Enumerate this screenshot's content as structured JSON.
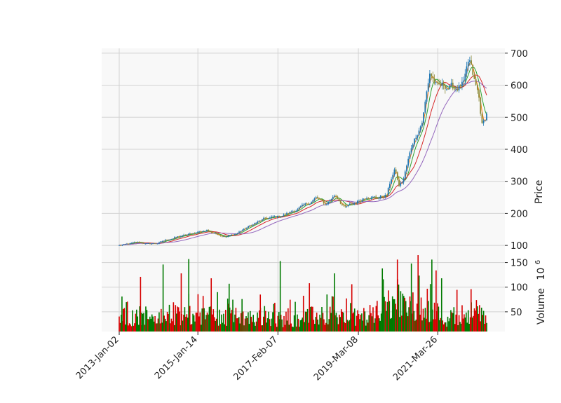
{
  "chart_data": [
    {
      "type": "candlestick",
      "panel": "price",
      "ylabel": "Price",
      "ylim": [
        85,
        715
      ],
      "yticks": [
        100,
        200,
        300,
        400,
        500,
        600,
        700
      ],
      "x_tick_labels": [
        "2013-Jan-02",
        "2015-Jan-14",
        "2017-Feb-07",
        "2019-Mar-08",
        "2021-Mar-26"
      ],
      "x_range": [
        "2013-01-02",
        "2022-06-30"
      ],
      "grid": true,
      "up_color": "#1f77b4",
      "down_color": "#8b8b3a",
      "close_approx": [
        [
          "2013-01-02",
          100
        ],
        [
          "2013-04-01",
          104
        ],
        [
          "2013-07-01",
          110
        ],
        [
          "2013-10-01",
          104
        ],
        [
          "2014-01-02",
          107
        ],
        [
          "2014-04-01",
          118
        ],
        [
          "2014-07-01",
          126
        ],
        [
          "2014-10-01",
          132
        ],
        [
          "2015-01-14",
          142
        ],
        [
          "2015-04-01",
          147
        ],
        [
          "2015-07-01",
          139
        ],
        [
          "2015-10-01",
          126
        ],
        [
          "2016-01-04",
          136
        ],
        [
          "2016-04-01",
          152
        ],
        [
          "2016-07-01",
          168
        ],
        [
          "2016-10-01",
          182
        ],
        [
          "2017-02-07",
          190
        ],
        [
          "2017-05-01",
          198
        ],
        [
          "2017-08-01",
          212
        ],
        [
          "2017-11-01",
          226
        ],
        [
          "2018-02-01",
          248
        ],
        [
          "2018-05-01",
          228
        ],
        [
          "2018-08-01",
          258
        ],
        [
          "2018-11-01",
          218
        ],
        [
          "2019-03-08",
          238
        ],
        [
          "2019-06-01",
          255
        ],
        [
          "2019-09-01",
          248
        ],
        [
          "2019-12-01",
          258
        ],
        [
          "2020-01-15",
          312
        ],
        [
          "2020-02-20",
          338
        ],
        [
          "2020-03-20",
          285
        ],
        [
          "2020-05-01",
          300
        ],
        [
          "2020-08-01",
          420
        ],
        [
          "2020-11-01",
          490
        ],
        [
          "2021-01-10",
          640
        ],
        [
          "2021-03-26",
          590
        ],
        [
          "2021-06-01",
          598
        ],
        [
          "2021-09-01",
          590
        ],
        [
          "2021-12-01",
          605
        ],
        [
          "2022-01-15",
          675
        ],
        [
          "2022-03-01",
          615
        ],
        [
          "2022-04-15",
          565
        ],
        [
          "2022-05-20",
          470
        ],
        [
          "2022-06-30",
          510
        ]
      ],
      "moving_averages": [
        {
          "color": "#ff7f0e"
        },
        {
          "color": "#2ca02c"
        },
        {
          "color": "#d62728"
        },
        {
          "color": "#9467bd"
        }
      ]
    },
    {
      "type": "bar",
      "panel": "volume",
      "ylabel": "Volume",
      "ylabel_exponent": "10",
      "ylabel_exponent_power": "6",
      "ylim": [
        10,
        175
      ],
      "yticks": [
        50,
        100,
        150
      ],
      "up_color": "#007a00",
      "down_color": "#d60000",
      "volume_profile_approx": [
        [
          "2013-01-02",
          45
        ],
        [
          "2014-01-02",
          42
        ],
        [
          "2015-01-14",
          48
        ],
        [
          "2016-01-04",
          44
        ],
        [
          "2017-02-07",
          38
        ],
        [
          "2018-02-01",
          46
        ],
        [
          "2019-03-08",
          42
        ],
        [
          "2020-03-20",
          70
        ],
        [
          "2021-01-10",
          65
        ],
        [
          "2021-06-01",
          40
        ],
        [
          "2022-01-15",
          55
        ],
        [
          "2022-06-30",
          45
        ]
      ],
      "volume_peaks_approx": [
        [
          "2013-01-28",
          81
        ],
        [
          "2013-07-22",
          121
        ],
        [
          "2014-02-20",
          146
        ],
        [
          "2014-08-10",
          128
        ],
        [
          "2014-10-20",
          157
        ],
        [
          "2015-05-20",
          118
        ],
        [
          "2015-11-05",
          107
        ],
        [
          "2016-08-25",
          85
        ],
        [
          "2017-03-01",
          153
        ],
        [
          "2017-12-01",
          108
        ],
        [
          "2018-07-26",
          128
        ],
        [
          "2019-01-05",
          106
        ],
        [
          "2019-10-20",
          138
        ],
        [
          "2020-03-10",
          156
        ],
        [
          "2020-07-20",
          148
        ],
        [
          "2020-09-21",
          165
        ],
        [
          "2021-01-29",
          156
        ],
        [
          "2021-03-10",
          134
        ],
        [
          "2021-05-01",
          118
        ],
        [
          "2022-02-03",
          96
        ]
      ]
    }
  ]
}
